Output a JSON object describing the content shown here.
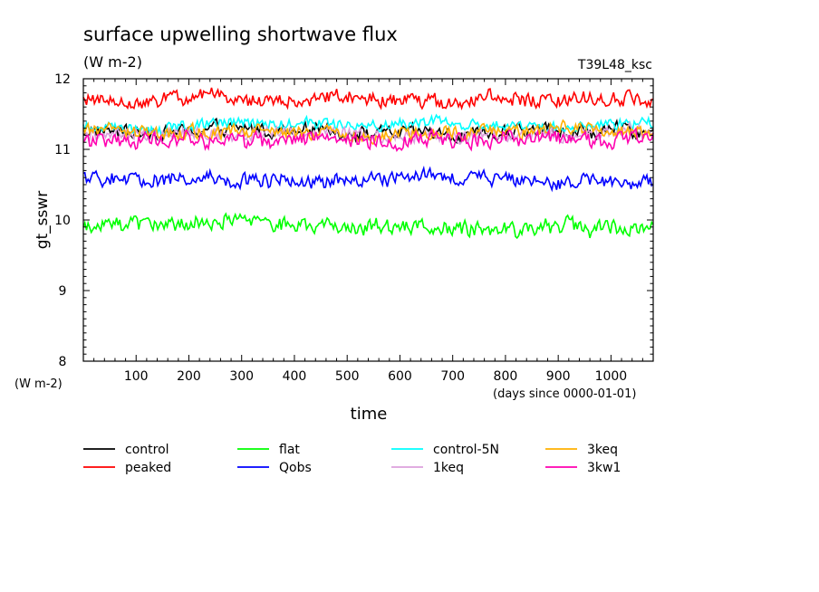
{
  "chart_data": {
    "type": "line",
    "title": "surface upwelling shortwave flux",
    "subtitle": "(W m-2)",
    "run_label": "T39L48_ksc",
    "ylabel": "gt_sswr",
    "yunit": "(W m-2)",
    "xlabel": "time",
    "xunit": "(days since 0000-01-01)",
    "xlim": [
      0,
      1080
    ],
    "ylim": [
      8,
      12
    ],
    "xticks": [
      100,
      200,
      300,
      400,
      500,
      600,
      700,
      800,
      900,
      1000
    ],
    "yticks": [
      8,
      9,
      10,
      11,
      12
    ],
    "grid": false,
    "legend_position": "bottom",
    "series": [
      {
        "name": "control",
        "color": "#000000",
        "mean": 11.25,
        "amplitude": 0.12
      },
      {
        "name": "peaked",
        "color": "#ff0000",
        "mean": 11.68,
        "amplitude": 0.13
      },
      {
        "name": "flat",
        "color": "#00ff00",
        "mean": 9.92,
        "amplitude": 0.14
      },
      {
        "name": "Qobs",
        "color": "#0000ff",
        "mean": 10.58,
        "amplitude": 0.13
      },
      {
        "name": "control-5N",
        "color": "#00ffff",
        "mean": 11.35,
        "amplitude": 0.1
      },
      {
        "name": "1keq",
        "color": "#dda0dd",
        "mean": 11.22,
        "amplitude": 0.12
      },
      {
        "name": "3keq",
        "color": "#ffb000",
        "mean": 11.25,
        "amplitude": 0.12
      },
      {
        "name": "3kw1",
        "color": "#ff00b0",
        "mean": 11.12,
        "amplitude": 0.14
      }
    ]
  }
}
